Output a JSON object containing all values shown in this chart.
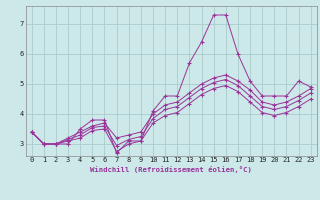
{
  "title": "",
  "xlabel": "Windchill (Refroidissement éolien,°C)",
  "ylabel": "",
  "bg_color": "#cce8e8",
  "grid_color": "#aacccc",
  "line_color": "#993399",
  "xlim": [
    -0.5,
    23.5
  ],
  "ylim": [
    2.6,
    7.6
  ],
  "xticks": [
    0,
    1,
    2,
    3,
    4,
    5,
    6,
    7,
    8,
    9,
    10,
    11,
    12,
    13,
    14,
    15,
    16,
    17,
    18,
    19,
    20,
    21,
    22,
    23
  ],
  "yticks": [
    3,
    4,
    5,
    6,
    7
  ],
  "series": [
    {
      "x": [
        0,
        1,
        2,
        3,
        4,
        5,
        6,
        7,
        8,
        9,
        10,
        11,
        12,
        13,
        14,
        15,
        16,
        17,
        18,
        19,
        20,
        21,
        22,
        23
      ],
      "y": [
        3.4,
        3.0,
        3.0,
        3.0,
        3.5,
        3.8,
        3.8,
        2.7,
        3.1,
        3.1,
        4.1,
        4.6,
        4.6,
        5.7,
        6.4,
        7.3,
        7.3,
        6.0,
        5.1,
        4.6,
        4.6,
        4.6,
        5.1,
        4.9
      ]
    },
    {
      "x": [
        0,
        1,
        2,
        3,
        4,
        5,
        6,
        7,
        8,
        9,
        10,
        11,
        12,
        13,
        14,
        15,
        16,
        17,
        18,
        19,
        20,
        21,
        22,
        23
      ],
      "y": [
        3.4,
        3.0,
        3.0,
        3.2,
        3.4,
        3.6,
        3.7,
        3.2,
        3.3,
        3.4,
        4.0,
        4.3,
        4.4,
        4.7,
        5.0,
        5.2,
        5.3,
        5.1,
        4.8,
        4.4,
        4.3,
        4.4,
        4.6,
        4.85
      ]
    },
    {
      "x": [
        0,
        1,
        2,
        3,
        4,
        5,
        6,
        7,
        8,
        9,
        10,
        11,
        12,
        13,
        14,
        15,
        16,
        17,
        18,
        19,
        20,
        21,
        22,
        23
      ],
      "y": [
        3.4,
        3.0,
        3.0,
        3.15,
        3.3,
        3.55,
        3.6,
        2.95,
        3.15,
        3.25,
        3.85,
        4.15,
        4.25,
        4.55,
        4.85,
        5.05,
        5.15,
        4.95,
        4.6,
        4.25,
        4.15,
        4.25,
        4.45,
        4.7
      ]
    },
    {
      "x": [
        0,
        1,
        2,
        3,
        4,
        5,
        6,
        7,
        8,
        9,
        10,
        11,
        12,
        13,
        14,
        15,
        16,
        17,
        18,
        19,
        20,
        21,
        22,
        23
      ],
      "y": [
        3.4,
        3.0,
        3.0,
        3.1,
        3.2,
        3.45,
        3.5,
        2.75,
        3.0,
        3.1,
        3.7,
        3.95,
        4.05,
        4.35,
        4.65,
        4.85,
        4.95,
        4.75,
        4.4,
        4.05,
        3.95,
        4.05,
        4.25,
        4.5
      ]
    }
  ]
}
